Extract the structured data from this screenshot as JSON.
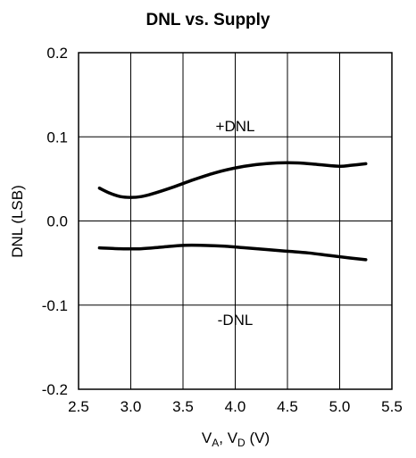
{
  "chart_data": {
    "type": "line",
    "title": "DNL vs. Supply",
    "xlabel": {
      "main1": "V",
      "sub1": "A",
      "sep": ", ",
      "main2": "V",
      "sub2": "D",
      "unit": " (V)"
    },
    "ylabel": "DNL (LSB)",
    "xlim": [
      2.5,
      5.5
    ],
    "ylim": [
      -0.2,
      0.2
    ],
    "x_ticks": [
      "2.5",
      "3.0",
      "3.5",
      "4.0",
      "4.5",
      "5.0",
      "5.5"
    ],
    "y_ticks": [
      "0.2",
      "0.1",
      "0.0",
      "-0.1",
      "-0.2"
    ],
    "grid": true,
    "series": [
      {
        "name": "+DNL",
        "x": [
          2.7,
          2.8,
          2.9,
          3.0,
          3.1,
          3.2,
          3.4,
          3.6,
          3.8,
          4.0,
          4.2,
          4.4,
          4.6,
          4.8,
          5.0,
          5.1,
          5.25
        ],
        "y": [
          0.039,
          0.033,
          0.029,
          0.028,
          0.029,
          0.032,
          0.04,
          0.049,
          0.057,
          0.063,
          0.067,
          0.069,
          0.069,
          0.067,
          0.065,
          0.066,
          0.068
        ]
      },
      {
        "name": "-DNL",
        "x": [
          2.7,
          2.9,
          3.1,
          3.3,
          3.5,
          3.7,
          3.9,
          4.1,
          4.3,
          4.5,
          4.7,
          4.9,
          5.1,
          5.25
        ],
        "y": [
          -0.032,
          -0.033,
          -0.033,
          -0.031,
          -0.029,
          -0.029,
          -0.03,
          -0.032,
          -0.034,
          -0.036,
          -0.038,
          -0.041,
          -0.044,
          -0.046
        ]
      }
    ],
    "annotations": [
      {
        "text": "+DNL",
        "x": 4.0,
        "y": 0.113
      },
      {
        "text": "-DNL",
        "x": 4.0,
        "y": -0.117
      }
    ]
  }
}
